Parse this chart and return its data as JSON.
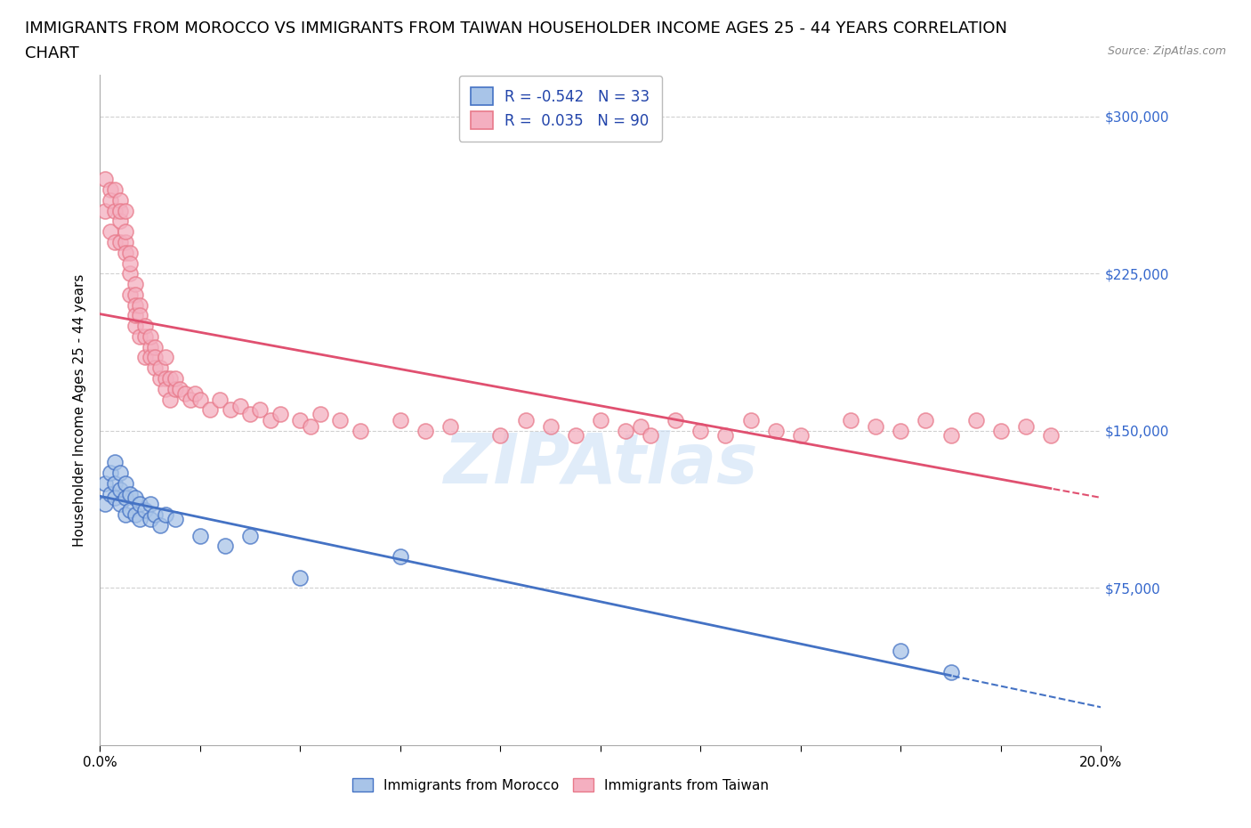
{
  "title_line1": "IMMIGRANTS FROM MOROCCO VS IMMIGRANTS FROM TAIWAN HOUSEHOLDER INCOME AGES 25 - 44 YEARS CORRELATION",
  "title_line2": "CHART",
  "source_text": "Source: ZipAtlas.com",
  "ylabel": "Householder Income Ages 25 - 44 years",
  "xlim": [
    0.0,
    0.2
  ],
  "ylim": [
    0,
    320000
  ],
  "yticks": [
    0,
    75000,
    150000,
    225000,
    300000
  ],
  "ytick_labels": [
    "",
    "$75,000",
    "$150,000",
    "$225,000",
    "$300,000"
  ],
  "xticks": [
    0.0,
    0.02,
    0.04,
    0.06,
    0.08,
    0.1,
    0.12,
    0.14,
    0.16,
    0.18,
    0.2
  ],
  "xtick_labels_show": [
    "0.0%",
    "",
    "",
    "",
    "",
    "",
    "",
    "",
    "",
    "",
    "20.0%"
  ],
  "morocco_color": "#a8c4e8",
  "taiwan_color": "#f4afc0",
  "morocco_edge_color": "#4472c4",
  "taiwan_edge_color": "#e8798a",
  "morocco_line_color": "#4472c4",
  "taiwan_line_color": "#e05070",
  "morocco_R": -0.542,
  "morocco_N": 33,
  "taiwan_R": 0.035,
  "taiwan_N": 90,
  "watermark": "ZIPAtlas",
  "background_color": "#ffffff",
  "grid_color": "#d0d0d0",
  "title_fontsize": 13,
  "axis_label_fontsize": 11,
  "tick_label_fontsize": 11,
  "legend_fontsize": 12,
  "morocco_x": [
    0.001,
    0.001,
    0.002,
    0.002,
    0.003,
    0.003,
    0.003,
    0.004,
    0.004,
    0.004,
    0.005,
    0.005,
    0.005,
    0.006,
    0.006,
    0.007,
    0.007,
    0.008,
    0.008,
    0.009,
    0.01,
    0.01,
    0.011,
    0.012,
    0.013,
    0.015,
    0.02,
    0.025,
    0.03,
    0.04,
    0.06,
    0.16,
    0.17
  ],
  "morocco_y": [
    125000,
    115000,
    130000,
    120000,
    135000,
    125000,
    118000,
    130000,
    122000,
    115000,
    125000,
    118000,
    110000,
    120000,
    112000,
    118000,
    110000,
    115000,
    108000,
    112000,
    115000,
    108000,
    110000,
    105000,
    110000,
    108000,
    100000,
    95000,
    100000,
    80000,
    90000,
    45000,
    35000
  ],
  "taiwan_x": [
    0.001,
    0.001,
    0.002,
    0.002,
    0.002,
    0.003,
    0.003,
    0.003,
    0.004,
    0.004,
    0.004,
    0.004,
    0.005,
    0.005,
    0.005,
    0.005,
    0.006,
    0.006,
    0.006,
    0.006,
    0.007,
    0.007,
    0.007,
    0.007,
    0.007,
    0.008,
    0.008,
    0.008,
    0.009,
    0.009,
    0.009,
    0.01,
    0.01,
    0.01,
    0.011,
    0.011,
    0.011,
    0.012,
    0.012,
    0.013,
    0.013,
    0.013,
    0.014,
    0.014,
    0.015,
    0.015,
    0.016,
    0.017,
    0.018,
    0.019,
    0.02,
    0.022,
    0.024,
    0.026,
    0.028,
    0.03,
    0.032,
    0.034,
    0.036,
    0.04,
    0.042,
    0.044,
    0.048,
    0.052,
    0.06,
    0.065,
    0.07,
    0.08,
    0.085,
    0.09,
    0.095,
    0.1,
    0.105,
    0.108,
    0.11,
    0.115,
    0.12,
    0.125,
    0.13,
    0.135,
    0.14,
    0.15,
    0.155,
    0.16,
    0.165,
    0.17,
    0.175,
    0.18,
    0.185,
    0.19
  ],
  "taiwan_y": [
    270000,
    255000,
    265000,
    260000,
    245000,
    255000,
    265000,
    240000,
    250000,
    260000,
    240000,
    255000,
    240000,
    255000,
    245000,
    235000,
    235000,
    225000,
    215000,
    230000,
    220000,
    215000,
    210000,
    200000,
    205000,
    210000,
    205000,
    195000,
    195000,
    185000,
    200000,
    190000,
    185000,
    195000,
    190000,
    180000,
    185000,
    175000,
    180000,
    175000,
    185000,
    170000,
    175000,
    165000,
    170000,
    175000,
    170000,
    168000,
    165000,
    168000,
    165000,
    160000,
    165000,
    160000,
    162000,
    158000,
    160000,
    155000,
    158000,
    155000,
    152000,
    158000,
    155000,
    150000,
    155000,
    150000,
    152000,
    148000,
    155000,
    152000,
    148000,
    155000,
    150000,
    152000,
    148000,
    155000,
    150000,
    148000,
    155000,
    150000,
    148000,
    155000,
    152000,
    150000,
    155000,
    148000,
    155000,
    150000,
    152000,
    148000
  ]
}
